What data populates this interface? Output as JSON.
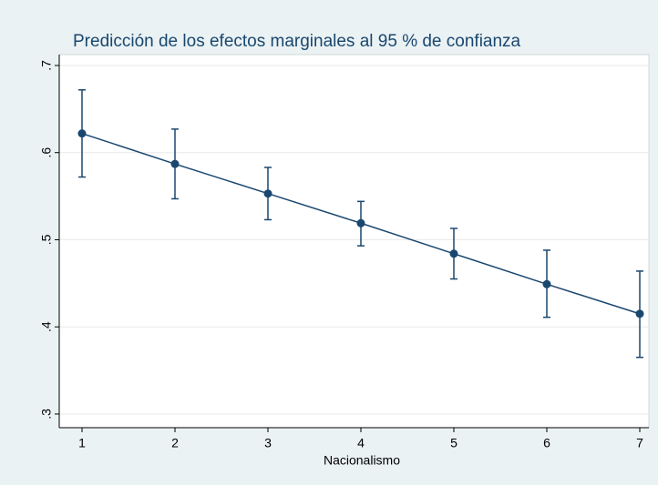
{
  "chart_data": {
    "type": "line",
    "title": "Predicción de los efectos marginales al 95 % de confianza",
    "xlabel": "Nacionalismo",
    "x": [
      1,
      2,
      3,
      4,
      5,
      6,
      7
    ],
    "series": [
      {
        "color": "#1a476f",
        "values": [
          0.622,
          0.587,
          0.553,
          0.519,
          0.484,
          0.449,
          0.415
        ],
        "ci_lower": [
          0.572,
          0.547,
          0.523,
          0.493,
          0.455,
          0.411,
          0.365
        ],
        "ci_upper": [
          0.672,
          0.627,
          0.583,
          0.544,
          0.513,
          0.488,
          0.464
        ]
      }
    ],
    "xlim": [
      0.755,
      7.098
    ],
    "ylim": [
      0.2843,
      0.7125
    ],
    "xticks": [
      1,
      2,
      3,
      4,
      5,
      6,
      7
    ],
    "yticks": [
      {
        "value": 0.3,
        "label": ".3"
      },
      {
        "value": 0.4,
        "label": ".4"
      },
      {
        "value": 0.5,
        "label": ".5"
      },
      {
        "value": 0.6,
        "label": ".6"
      },
      {
        "value": 0.7,
        "label": ".7"
      }
    ],
    "grid": true
  }
}
